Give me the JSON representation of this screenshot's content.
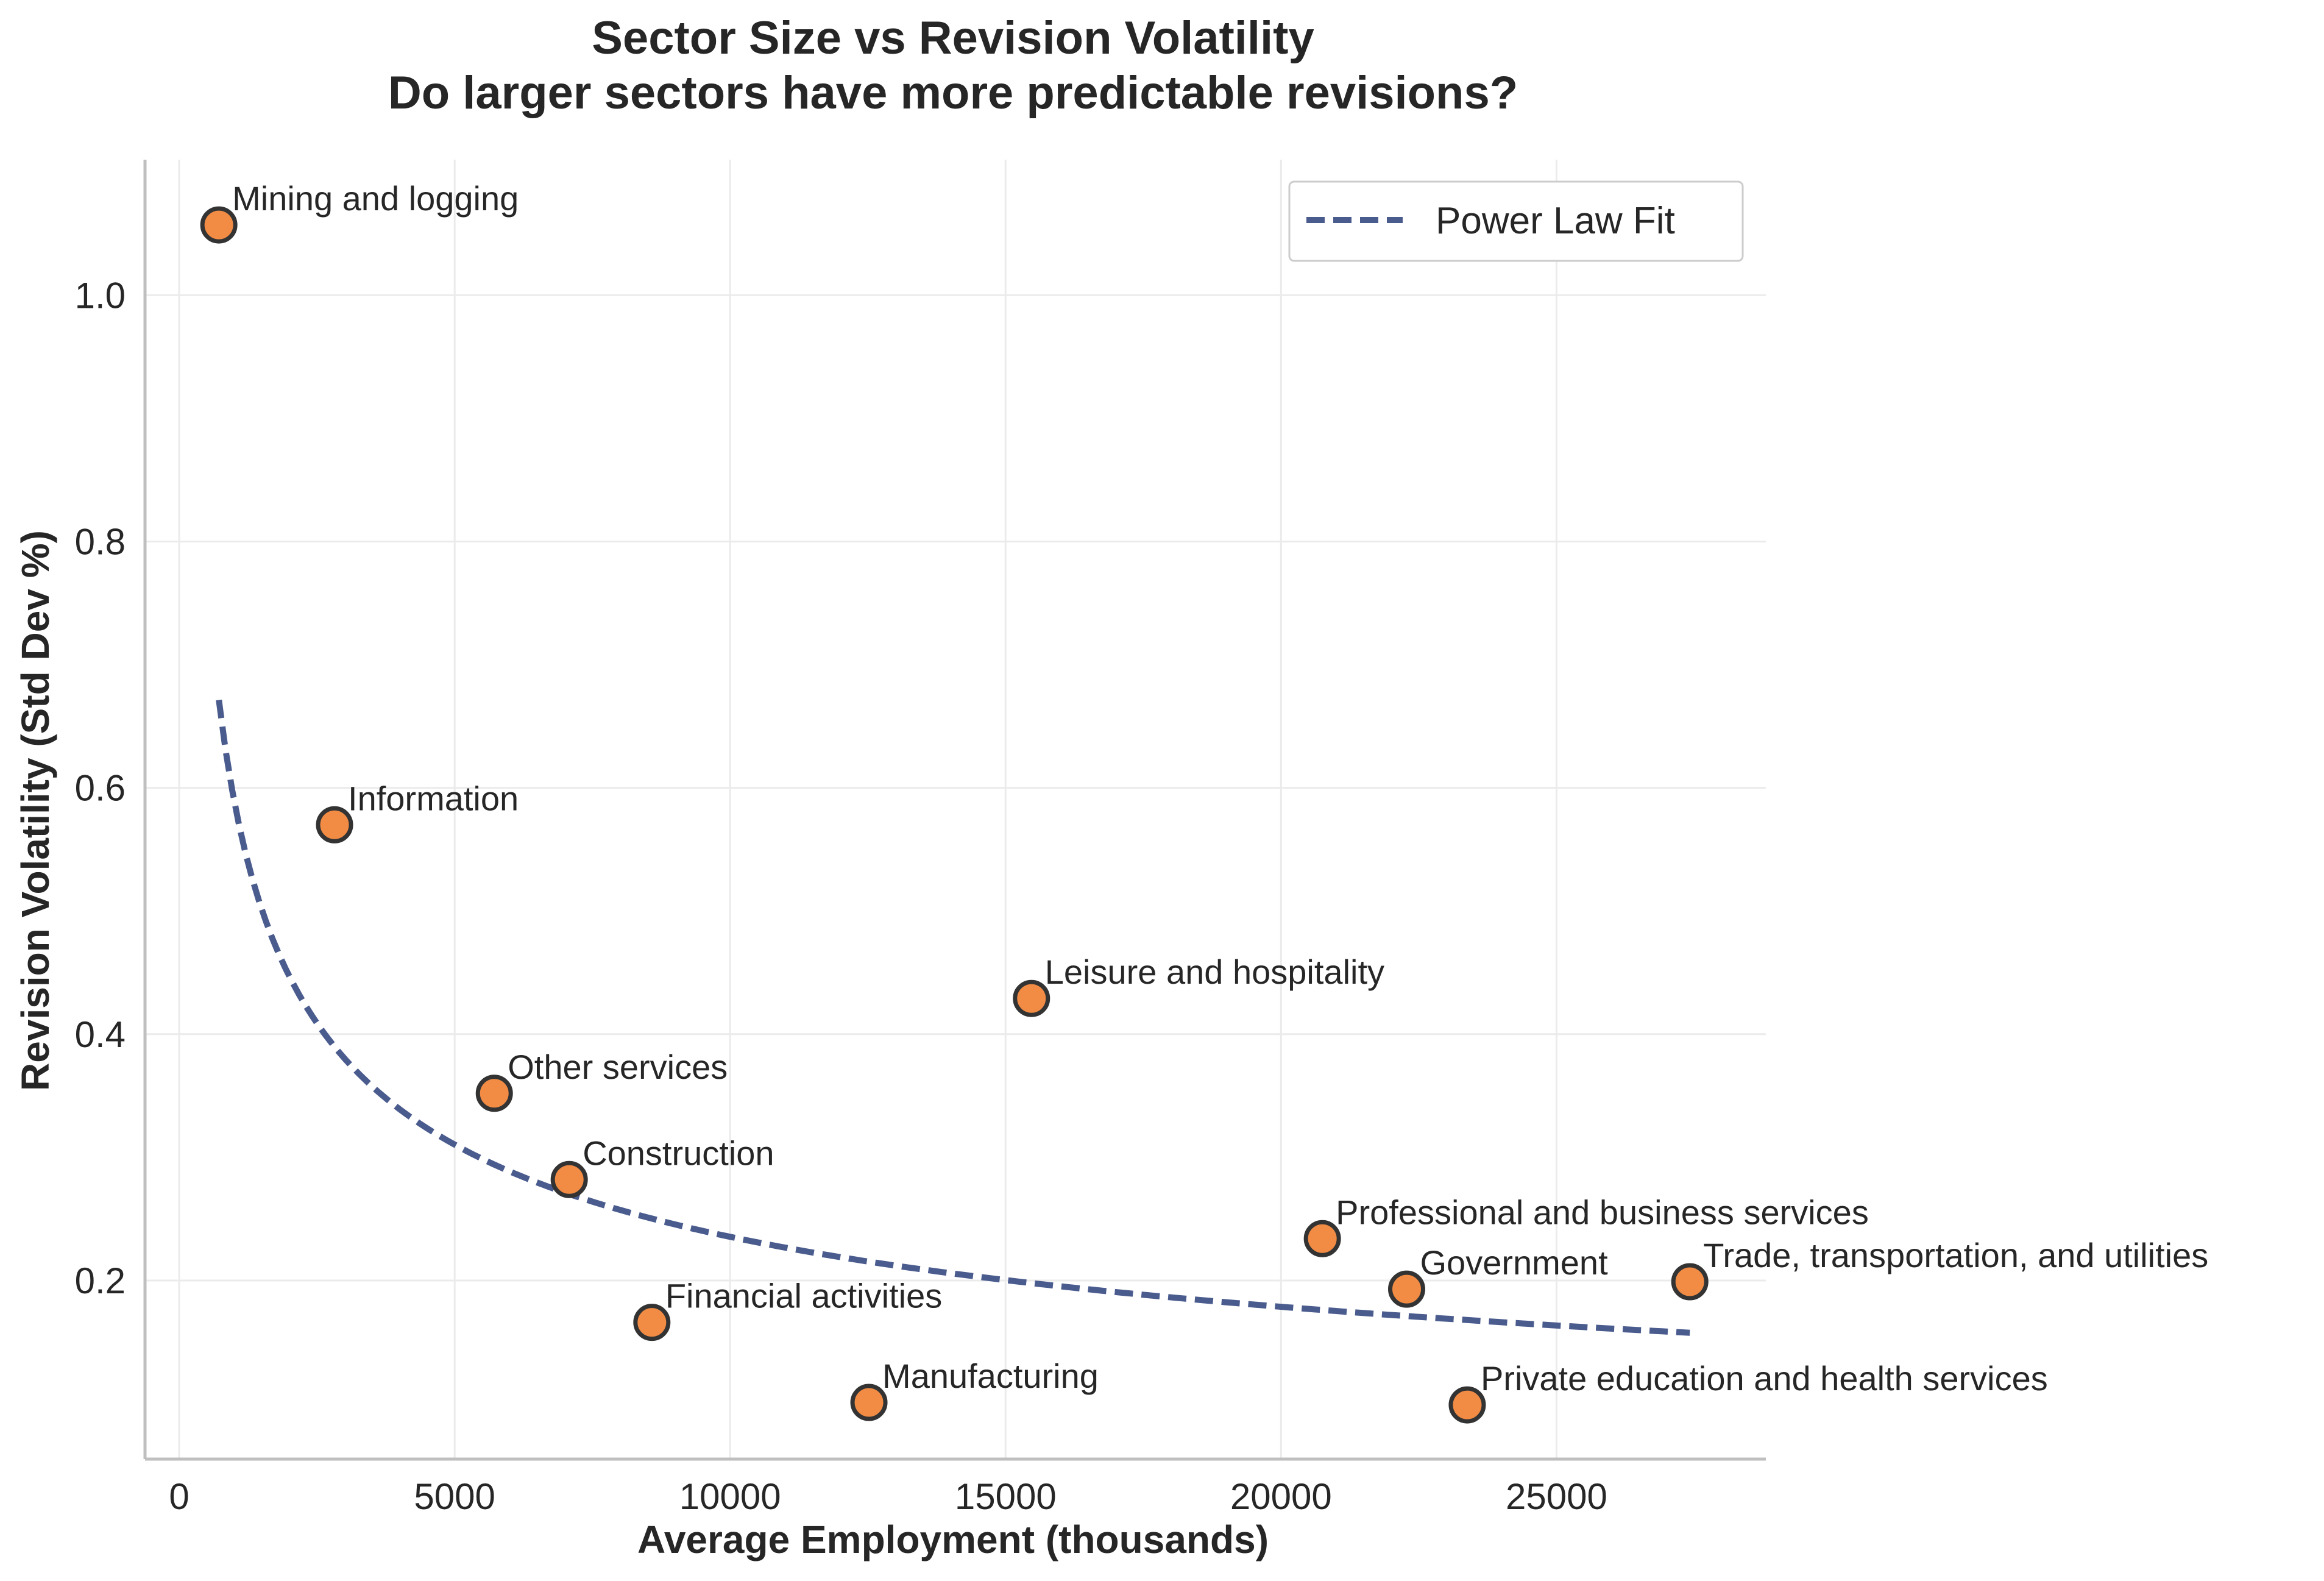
{
  "chart_data": {
    "type": "scatter",
    "title_lines": [
      "Sector Size vs Revision Volatility",
      "Do larger sectors have more predictable revisions?"
    ],
    "xlabel": "Average Employment (thousands)",
    "ylabel": "Revision Volatility (Std Dev %)",
    "xlim": [
      -620,
      28800
    ],
    "ylim": [
      0.055,
      1.11
    ],
    "xticks": [
      0,
      5000,
      10000,
      15000,
      20000,
      25000
    ],
    "yticks": [
      0.2,
      0.4,
      0.6,
      0.8,
      1.0
    ],
    "xtick_labels": [
      "0",
      "5000",
      "10000",
      "15000",
      "20000",
      "25000"
    ],
    "ytick_labels": [
      "0.2",
      "0.4",
      "0.6",
      "0.8",
      "1.0"
    ],
    "grid": true,
    "legend": {
      "position": "top-right",
      "entries": [
        "Power Law Fit"
      ]
    },
    "points": [
      {
        "label": "Mining and logging",
        "x": 720,
        "y": 1.057
      },
      {
        "label": "Information",
        "x": 2820,
        "y": 0.57
      },
      {
        "label": "Other services",
        "x": 5720,
        "y": 0.352
      },
      {
        "label": "Construction",
        "x": 7080,
        "y": 0.282
      },
      {
        "label": "Financial activities",
        "x": 8580,
        "y": 0.166
      },
      {
        "label": "Manufacturing",
        "x": 12520,
        "y": 0.101
      },
      {
        "label": "Leisure and hospitality",
        "x": 15470,
        "y": 0.429
      },
      {
        "label": "Professional and business services",
        "x": 20750,
        "y": 0.234
      },
      {
        "label": "Government",
        "x": 22280,
        "y": 0.193
      },
      {
        "label": "Private education and health services",
        "x": 23380,
        "y": 0.099
      },
      {
        "label": "Trade, transportation, and utilities",
        "x": 27420,
        "y": 0.199
      }
    ],
    "fit": {
      "name": "Power Law Fit",
      "form": "y = a * x^b",
      "a": 9.22,
      "b": -0.3982,
      "x_range": [
        720,
        27420
      ]
    },
    "colors": {
      "point_fill": "#F28C45",
      "point_edge": "#333333",
      "fit_line": "#4A5B8E",
      "grid": "#EBEBEB",
      "axis": "#BFBFBF",
      "text": "#262626"
    }
  }
}
